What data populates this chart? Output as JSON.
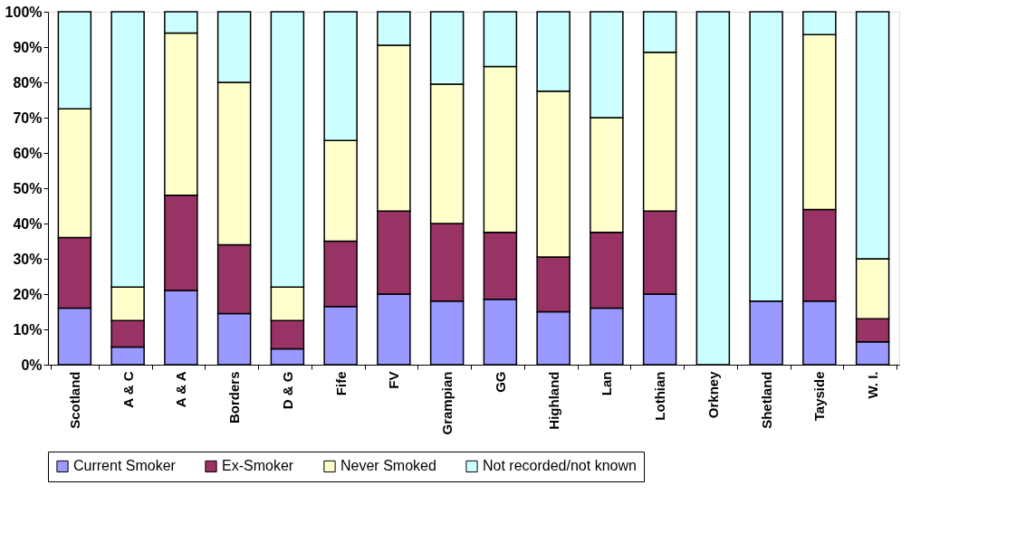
{
  "chart_data": {
    "type": "bar",
    "stacked": true,
    "categories": [
      "Scotland",
      "A & C",
      "A & A",
      "Borders",
      "D & G",
      "Fife",
      "FV",
      "Grampian",
      "GG",
      "Highland",
      "Lan",
      "Lothian",
      "Orkney",
      "Shetland",
      "Tayside",
      "W. I."
    ],
    "series": [
      {
        "name": "Current Smoker",
        "color": "#9999ff",
        "values": [
          16,
          5,
          21,
          14.5,
          4.5,
          16.5,
          20,
          18,
          18.5,
          15,
          16,
          20,
          null,
          18,
          18,
          6.5
        ]
      },
      {
        "name": "Ex-Smoker",
        "color": "#993366",
        "values": [
          20,
          7.5,
          27,
          19.5,
          8,
          18.5,
          23.5,
          22,
          19,
          15.5,
          21.5,
          23.5,
          null,
          null,
          26,
          6.5
        ]
      },
      {
        "name": "Never Smoked",
        "color": "#ffffcc",
        "values": [
          36.5,
          9.5,
          46,
          46,
          9.5,
          28.5,
          47,
          39.5,
          47,
          47,
          32.5,
          45,
          null,
          null,
          49.5,
          17
        ]
      },
      {
        "name": "Not recorded/not known",
        "color": "#ccffff",
        "values": [
          27.5,
          78,
          6,
          20,
          78,
          36.5,
          9.5,
          20.5,
          15.5,
          22.5,
          30,
          11.5,
          100,
          82,
          6.5,
          70
        ]
      }
    ],
    "ylim": [
      0,
      100
    ],
    "yticks": [
      {
        "value": 0,
        "label": "0%"
      },
      {
        "value": 10,
        "label": "10%"
      },
      {
        "value": 20,
        "label": "20%"
      },
      {
        "value": 30,
        "label": "30%"
      },
      {
        "value": 40,
        "label": "40%"
      },
      {
        "value": 50,
        "label": "50%"
      },
      {
        "value": 60,
        "label": "60%"
      },
      {
        "value": 70,
        "label": "70%"
      },
      {
        "value": 80,
        "label": "80%"
      },
      {
        "value": 90,
        "label": "90%"
      },
      {
        "value": 100,
        "label": "100%"
      }
    ],
    "grid": false,
    "legend": "bottom"
  }
}
